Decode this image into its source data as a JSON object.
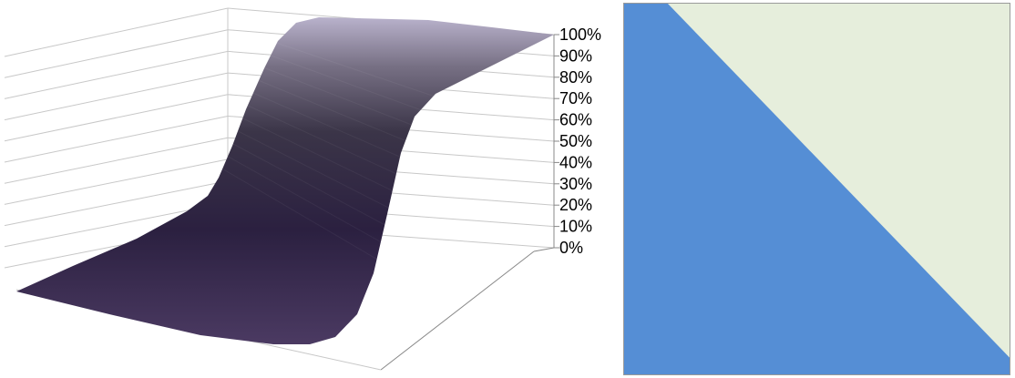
{
  "chart_data": [
    {
      "type": "surface",
      "title": "",
      "xlabel": "",
      "ylabel": "",
      "zlabel": "",
      "z_tick_labels": [
        "0%",
        "10%",
        "20%",
        "30%",
        "40%",
        "50%",
        "60%",
        "70%",
        "80%",
        "90%",
        "100%"
      ],
      "zlim": [
        0,
        1
      ],
      "grid": true,
      "legend": "none",
      "surface_profile": {
        "x": [
          0,
          0.1,
          0.2,
          0.3,
          0.4,
          0.5,
          0.6,
          0.7,
          0.8,
          0.9,
          1.0
        ],
        "z": [
          0.0,
          0.0,
          0.01,
          0.03,
          0.12,
          0.5,
          0.88,
          0.97,
          0.99,
          1.0,
          1.0
        ]
      },
      "colors": {
        "low": "#4b3a62",
        "mid": "#2a1f3a",
        "high": "#b4adc6",
        "grid": "#c8c8c8",
        "wall": "#888888"
      }
    },
    {
      "type": "contour",
      "title": "",
      "xlabel": "",
      "ylabel": "",
      "grid": false,
      "legend": "none",
      "regions": [
        {
          "band": "lower",
          "color": "#558ed5"
        },
        {
          "band": "upper",
          "color": "#e6eedc"
        }
      ],
      "frame_color": "#9a9a9a"
    }
  ]
}
